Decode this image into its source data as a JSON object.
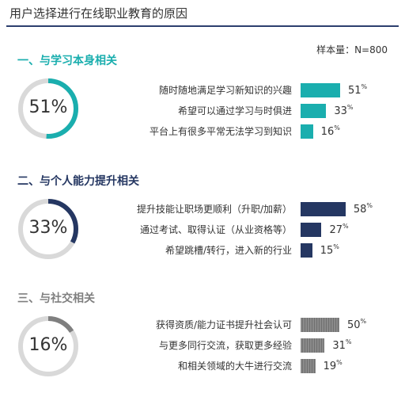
{
  "title": "用户选择进行在线职业教育的原因",
  "sample_note": "样本量：N=800",
  "colors": {
    "teal": "#1aaeae",
    "navy": "#253762",
    "gray": "#7f7f7f",
    "ring": "#d9d9d9",
    "rule": "#2d3f6e"
  },
  "chart_data": [
    {
      "type": "bar",
      "group_title": "一、与学习本身相关",
      "donut_label": "51%",
      "donut_value": 51,
      "color": "#1aaeae",
      "categories": [
        "随时随地满足学习新知识的兴趣",
        "希望可以通过学习与时俱进",
        "平台上有很多平常无法学习到知识"
      ],
      "values": [
        51,
        33,
        16
      ],
      "value_labels": [
        "51",
        "33",
        "16"
      ],
      "unit": "%"
    },
    {
      "type": "bar",
      "group_title": "二、与个人能力提升相关",
      "donut_label": "33%",
      "donut_value": 33,
      "color": "#253762",
      "categories": [
        "提升技能让职场更顺利（升职/加薪）",
        "通过考试、取得认证（从业资格等）",
        "希望跳槽/转行，进入新的行业"
      ],
      "values": [
        58,
        27,
        15
      ],
      "value_labels": [
        "58",
        "27",
        "15"
      ],
      "unit": "%"
    },
    {
      "type": "bar",
      "group_title": "三、与社交相关",
      "donut_label": "16%",
      "donut_value": 16,
      "color": "#7f7f7f",
      "categories": [
        "获得资质/能力证书提升社会认可",
        "与更多同行交流，获取更多经验",
        "和相关领域的大牛进行交流"
      ],
      "values": [
        50,
        31,
        19
      ],
      "value_labels": [
        "50",
        "31",
        "19"
      ],
      "unit": "%"
    }
  ]
}
